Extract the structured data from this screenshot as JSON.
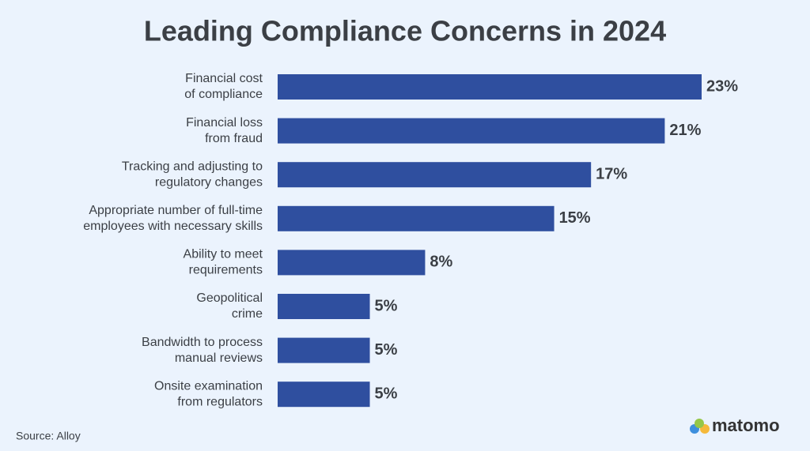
{
  "chart_data": {
    "type": "bar",
    "orientation": "horizontal",
    "title": "Leading Compliance Concerns in 2024",
    "categories": [
      [
        "Financial cost",
        "of compliance"
      ],
      [
        "Financial loss",
        "from fraud"
      ],
      [
        "Tracking and adjusting to",
        "regulatory changes"
      ],
      [
        "Appropriate number of full-time",
        "employees with necessary skills"
      ],
      [
        "Ability to meet",
        "requirements"
      ],
      [
        "Geopolitical",
        "crime"
      ],
      [
        "Bandwidth to process",
        "manual reviews"
      ],
      [
        "Onsite examination",
        "from regulators"
      ]
    ],
    "values": [
      23,
      21,
      17,
      15,
      8,
      5,
      5,
      5
    ],
    "value_labels": [
      "23%",
      "21%",
      "17%",
      "15%",
      "8%",
      "5%",
      "5%",
      "5%"
    ],
    "color": "#2f4f9f",
    "source": "Source: Alloy",
    "logo": "matomo"
  }
}
